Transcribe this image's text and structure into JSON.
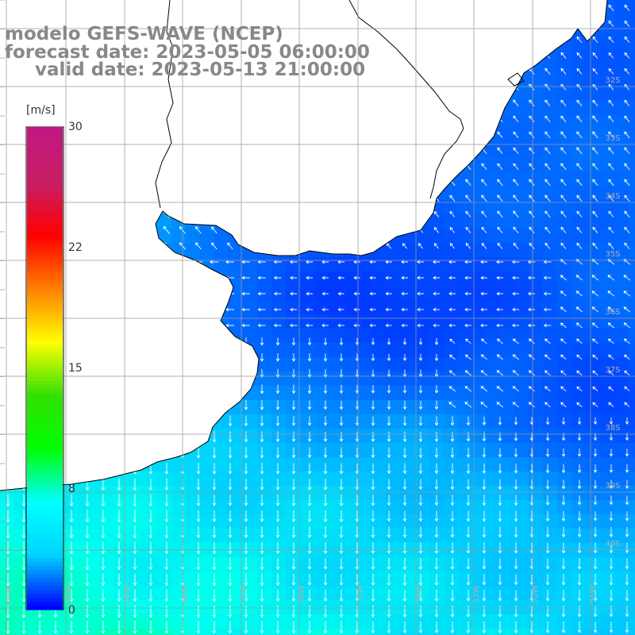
{
  "title": {
    "line1": "modelo GEFS-WAVE (NCEP)",
    "line2": "forecast date: 2023-05-05 06:00:00",
    "line3": "valid date: 2023-05-13 21:00:00"
  },
  "colorbar": {
    "unit": "[m/s]",
    "ticks": [
      "30",
      "22",
      "15",
      "8",
      "0"
    ],
    "tick_values": [
      30,
      22,
      15,
      8,
      0
    ],
    "min": 0,
    "max": 30,
    "colors": [
      "#0000ff",
      "#00d4ff",
      "#00ffff",
      "#00ff00",
      "#33e000",
      "#ffff00",
      "#ff8000",
      "#ff0000",
      "#c81e64",
      "#c01880"
    ]
  },
  "map": {
    "latitude_labels": [
      "32S",
      "33S",
      "34S",
      "35S",
      "36S",
      "37S",
      "38S",
      "39S",
      "40S"
    ],
    "longitude_labels": [
      "61W",
      "60W",
      "59W",
      "58W",
      "57W",
      "56W",
      "55W",
      "54W",
      "53W",
      "52W",
      "51W"
    ],
    "land_color": "#ffffff",
    "grid_color": "#999999",
    "arrow_color": "#ffffff"
  }
}
